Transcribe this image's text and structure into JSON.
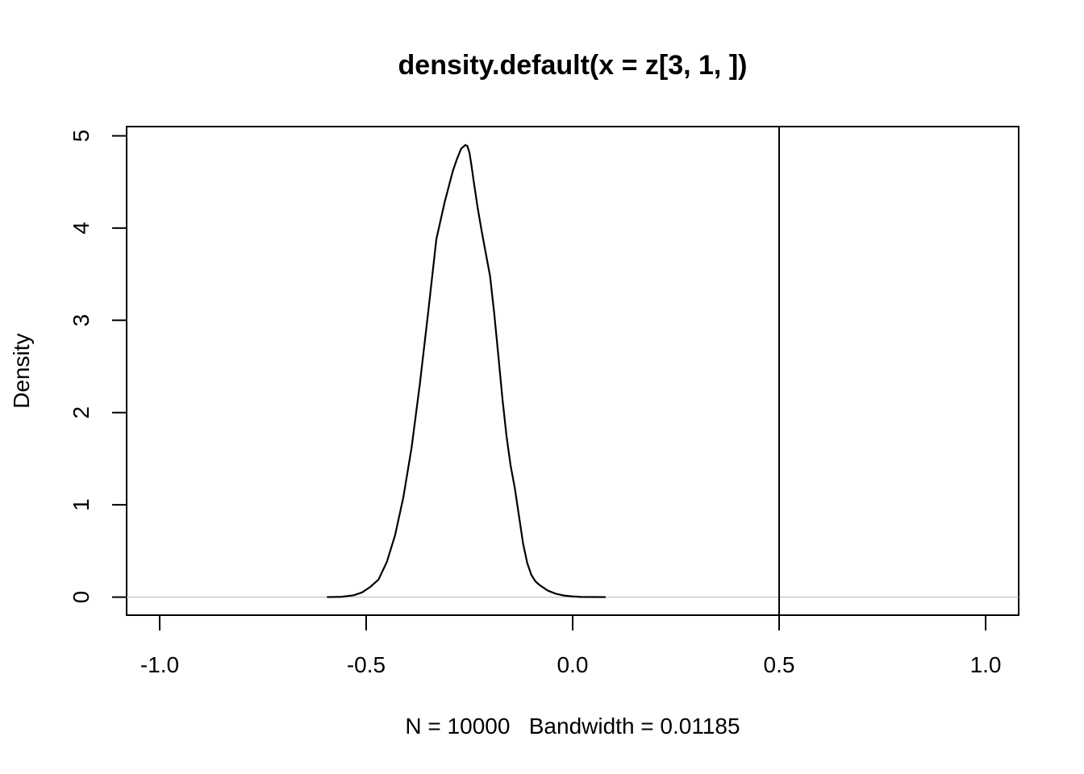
{
  "chart_data": {
    "type": "line",
    "title": "density.default(x = z[3, 1, ])",
    "xlabel": "N = 10000   Bandwidth = 0.01185",
    "ylabel": "Density",
    "xlim": [
      -1.08,
      1.08
    ],
    "ylim": [
      -0.196,
      5.1
    ],
    "x_ticks": [
      -1.0,
      -0.5,
      0.0,
      0.5,
      1.0
    ],
    "x_tick_labels": [
      "-1.0",
      "-0.5",
      "0.0",
      "0.5",
      "1.0"
    ],
    "y_ticks": [
      0,
      1,
      2,
      3,
      4,
      5
    ],
    "y_tick_labels": [
      "0",
      "1",
      "2",
      "3",
      "4",
      "5"
    ],
    "grid": false,
    "series": [
      {
        "x": [
          -0.595,
          -0.56,
          -0.53,
          -0.51,
          -0.49,
          -0.47,
          -0.45,
          -0.43,
          -0.41,
          -0.39,
          -0.37,
          -0.35,
          -0.33,
          -0.31,
          -0.3,
          -0.29,
          -0.28,
          -0.27,
          -0.26,
          -0.255,
          -0.25,
          -0.245,
          -0.24,
          -0.23,
          -0.22,
          -0.21,
          -0.2,
          -0.19,
          -0.18,
          -0.17,
          -0.16,
          -0.15,
          -0.14,
          -0.13,
          -0.12,
          -0.11,
          -0.1,
          -0.09,
          -0.08,
          -0.06,
          -0.04,
          -0.02,
          0.0,
          0.02,
          0.05,
          0.08
        ],
        "y": [
          0.0,
          0.003,
          0.02,
          0.05,
          0.11,
          0.19,
          0.38,
          0.67,
          1.08,
          1.62,
          2.31,
          3.08,
          3.88,
          4.28,
          4.45,
          4.62,
          4.75,
          4.86,
          4.9,
          4.89,
          4.82,
          4.68,
          4.52,
          4.22,
          3.96,
          3.72,
          3.48,
          3.08,
          2.62,
          2.15,
          1.74,
          1.42,
          1.18,
          0.88,
          0.58,
          0.37,
          0.24,
          0.17,
          0.13,
          0.07,
          0.035,
          0.016,
          0.007,
          0.002,
          0.0005,
          0.0
        ]
      }
    ],
    "vline": 0.5,
    "hline": 0,
    "hline_color": "#bebebe",
    "line_color": "#000000"
  }
}
